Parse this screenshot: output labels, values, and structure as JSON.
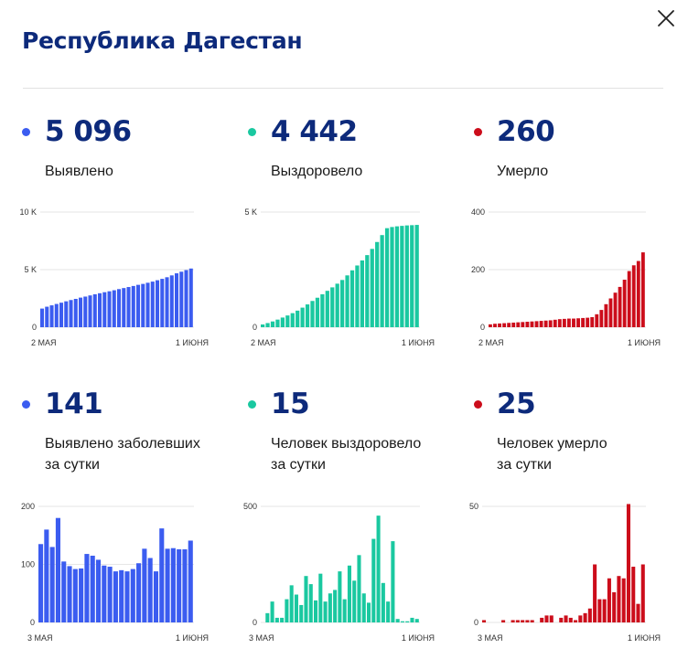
{
  "title": "Республика Дагестан",
  "close_icon": "close-icon",
  "colors": {
    "blue": "#3b5cf0",
    "green": "#1ac8a0",
    "red": "#cc0d1b",
    "navy": "#0d2a7b"
  },
  "stats": [
    {
      "value": "5 096",
      "label": [
        "Выявлено"
      ],
      "color": "#3b5cf0"
    },
    {
      "value": "4 442",
      "label": [
        "Выздоровело"
      ],
      "color": "#1ac8a0"
    },
    {
      "value": "260",
      "label": [
        "Умерло"
      ],
      "color": "#cc0d1b"
    },
    {
      "value": "141",
      "label": [
        "Выявлено заболевших",
        "за сутки"
      ],
      "color": "#3b5cf0"
    },
    {
      "value": "15",
      "label": [
        "Человек выздоровело",
        "за сутки"
      ],
      "color": "#1ac8a0"
    },
    {
      "value": "25",
      "label": [
        "Человек умерло",
        "за сутки"
      ],
      "color": "#cc0d1b"
    }
  ],
  "chart_data": [
    {
      "type": "bar",
      "color": "#3b5cf0",
      "ylim": [
        0,
        10000
      ],
      "yticks": [
        {
          "v": 10000,
          "label": "10 K"
        },
        {
          "v": 5000,
          "label": "5 K"
        },
        {
          "v": 0,
          "label": "0"
        }
      ],
      "xlabels": [
        "2 МАЯ",
        "1 ИЮНЯ"
      ],
      "values": [
        1620,
        1780,
        1900,
        2020,
        2130,
        2250,
        2360,
        2460,
        2570,
        2660,
        2760,
        2860,
        2950,
        3040,
        3120,
        3210,
        3310,
        3400,
        3490,
        3580,
        3680,
        3760,
        3860,
        3960,
        4080,
        4200,
        4340,
        4500,
        4680,
        4820,
        4960,
        5096
      ]
    },
    {
      "type": "bar",
      "color": "#1ac8a0",
      "ylim": [
        0,
        5000
      ],
      "yticks": [
        {
          "v": 5000,
          "label": "5 K"
        },
        {
          "v": 0,
          "label": "0"
        }
      ],
      "xlabels": [
        "2 МАЯ",
        "1 ИЮНЯ"
      ],
      "values": [
        120,
        180,
        250,
        330,
        420,
        510,
        610,
        720,
        850,
        990,
        1140,
        1280,
        1430,
        1580,
        1730,
        1890,
        2050,
        2250,
        2470,
        2680,
        2900,
        3130,
        3400,
        3700,
        4000,
        4300,
        4350,
        4380,
        4400,
        4420,
        4430,
        4442
      ]
    },
    {
      "type": "bar",
      "color": "#cc0d1b",
      "ylim": [
        0,
        400
      ],
      "yticks": [
        {
          "v": 400,
          "label": "400"
        },
        {
          "v": 200,
          "label": "200"
        },
        {
          "v": 0,
          "label": "0"
        }
      ],
      "xlabels": [
        "2 МАЯ",
        "1 ИЮНЯ"
      ],
      "values": [
        10,
        12,
        13,
        14,
        15,
        16,
        17,
        18,
        19,
        20,
        21,
        22,
        23,
        24,
        26,
        28,
        29,
        30,
        30,
        31,
        32,
        33,
        35,
        45,
        60,
        80,
        100,
        120,
        140,
        165,
        195,
        215,
        230,
        260
      ]
    },
    {
      "type": "bar",
      "color": "#3b5cf0",
      "ylim": [
        0,
        200
      ],
      "yticks": [
        {
          "v": 200,
          "label": "200"
        },
        {
          "v": 100,
          "label": "100"
        },
        {
          "v": 0,
          "label": "0"
        }
      ],
      "xlabels": [
        "3 МАЯ",
        "1 ИЮНЯ"
      ],
      "values": [
        135,
        160,
        130,
        180,
        105,
        97,
        92,
        93,
        118,
        115,
        108,
        98,
        96,
        88,
        90,
        88,
        92,
        102,
        127,
        111,
        88,
        162,
        127,
        128,
        126,
        126,
        141
      ]
    },
    {
      "type": "bar",
      "color": "#1ac8a0",
      "ylim": [
        0,
        500
      ],
      "yticks": [
        {
          "v": 500,
          "label": "500"
        },
        {
          "v": 0,
          "label": "0"
        }
      ],
      "xlabels": [
        "3 МАЯ",
        "1 ИЮНЯ"
      ],
      "values": [
        0,
        40,
        90,
        20,
        20,
        100,
        160,
        120,
        75,
        200,
        165,
        95,
        210,
        90,
        125,
        140,
        220,
        100,
        245,
        180,
        290,
        125,
        85,
        360,
        460,
        170,
        90,
        350,
        15,
        5,
        5,
        20,
        15
      ]
    },
    {
      "type": "bar",
      "color": "#cc0d1b",
      "ylim": [
        0,
        50
      ],
      "yticks": [
        {
          "v": 50,
          "label": "50"
        },
        {
          "v": 0,
          "label": "0"
        }
      ],
      "xlabels": [
        "3 МАЯ",
        "1 ИЮНЯ"
      ],
      "values": [
        1,
        0,
        0,
        0,
        1,
        0,
        1,
        1,
        1,
        1,
        1,
        0,
        2,
        3,
        3,
        0,
        2,
        3,
        2,
        1,
        3,
        4,
        6,
        25,
        10,
        10,
        19,
        13,
        20,
        19,
        51,
        24,
        8,
        25
      ]
    }
  ]
}
